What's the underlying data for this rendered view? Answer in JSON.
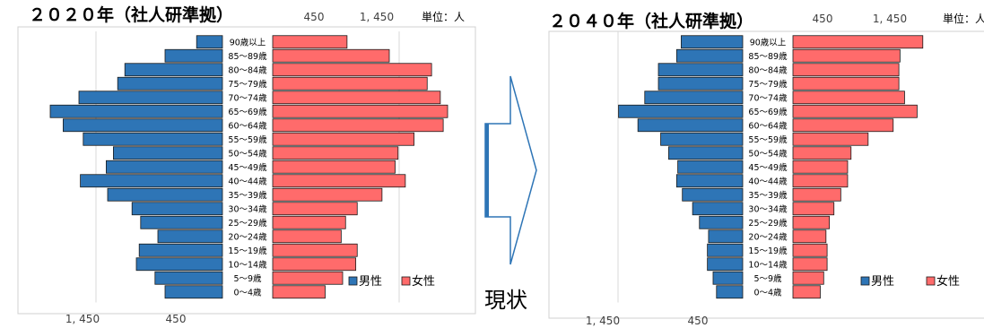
{
  "arrow_label": "現状",
  "legend_icon": "square-legend-marker",
  "chart_data": [
    {
      "type": "bar",
      "subtype": "population-pyramid",
      "title": "２０２０年（社人研準拠）",
      "unit_label": "単位：人",
      "categories": [
        "90歳以上",
        "85～89歳",
        "80～84歳",
        "75～79歳",
        "70～74歳",
        "65～69歳",
        "60～64歳",
        "55～59歳",
        "50～54歳",
        "45～49歳",
        "40～44歳",
        "35～39歳",
        "30～34歳",
        "25～29歳",
        "20～24歳",
        "15～19歳",
        "10～14歳",
        "5～9歳",
        "0～4歳"
      ],
      "top_ticks": [
        "450",
        "1, 450"
      ],
      "bottom_ticks": [
        "1, 450",
        "450"
      ],
      "xlim": [
        0,
        1450
      ],
      "legend_position": "bottom-right",
      "series": [
        {
          "name": "男性",
          "color": "#2E75B6",
          "values": [
            90,
            200,
            340,
            365,
            500,
            600,
            555,
            485,
            380,
            405,
            495,
            400,
            315,
            285,
            225,
            290,
            300,
            235,
            200
          ]
        },
        {
          "name": "女性",
          "color": "#FF6B6B",
          "values": [
            255,
            400,
            545,
            530,
            575,
            600,
            585,
            485,
            430,
            420,
            455,
            375,
            290,
            250,
            235,
            290,
            285,
            240,
            180
          ]
        }
      ]
    },
    {
      "type": "bar",
      "subtype": "population-pyramid",
      "title": "２０４０年（社人研準拠）",
      "unit_label": "単位：人",
      "categories": [
        "90歳以上",
        "85～89歳",
        "80～84歳",
        "75～79歳",
        "70～74歳",
        "65～69歳",
        "60～64歳",
        "55～59歳",
        "50～54歳",
        "45～49歳",
        "40～44歳",
        "35～39歳",
        "30～34歳",
        "25～29歳",
        "20～24歳",
        "15～19歳",
        "10～14歳",
        "5～9歳",
        "0～4歳"
      ],
      "top_ticks": [
        "450",
        "1, 450"
      ],
      "bottom_ticks": [
        "1, 450",
        "450"
      ],
      "xlim": [
        0,
        1450
      ],
      "legend_position": "bottom-right",
      "series": [
        {
          "name": "男性",
          "color": "#2E75B6",
          "values": [
            270,
            290,
            370,
            370,
            430,
            545,
            460,
            360,
            325,
            285,
            290,
            265,
            220,
            190,
            150,
            155,
            155,
            130,
            115
          ]
        },
        {
          "name": "女性",
          "color": "#FF6B6B",
          "values": [
            570,
            470,
            465,
            465,
            490,
            545,
            440,
            330,
            255,
            240,
            240,
            210,
            180,
            160,
            145,
            150,
            150,
            135,
            120
          ]
        }
      ]
    }
  ]
}
